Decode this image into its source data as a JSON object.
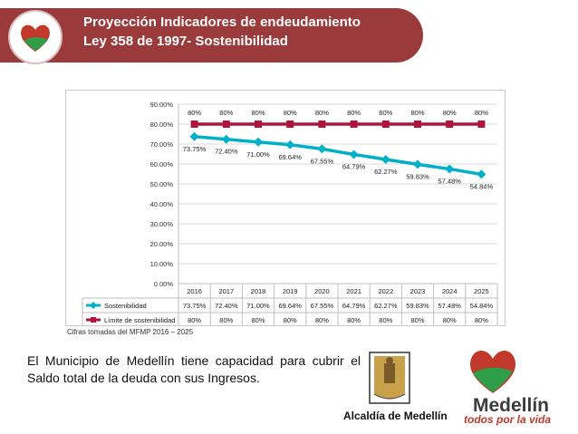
{
  "header": {
    "line1": "Proyección Indicadores de endeudamiento",
    "line2": "Ley 358 de 1997- Sostenibilidad"
  },
  "chart_data": {
    "type": "line",
    "categories": [
      "2016",
      "2017",
      "2018",
      "2019",
      "2020",
      "2021",
      "2022",
      "2023",
      "2024",
      "2025"
    ],
    "series": [
      {
        "name": "Sostenibilidad",
        "values": [
          73.75,
          72.4,
          71.0,
          69.64,
          67.55,
          64.79,
          62.27,
          59.83,
          57.48,
          54.84
        ],
        "labels": [
          "73.75%",
          "72.40%",
          "71.00%",
          "69.64%",
          "67.55%",
          "64.79%",
          "62.27%",
          "59.83%",
          "57.48%",
          "54.84%"
        ],
        "color": "#00b0c8",
        "marker": "diamond"
      },
      {
        "name": "Límite de sostenibilidad",
        "values": [
          80,
          80,
          80,
          80,
          80,
          80,
          80,
          80,
          80,
          80
        ],
        "labels": [
          "80%",
          "80%",
          "80%",
          "80%",
          "80%",
          "80%",
          "80%",
          "80%",
          "80%",
          "80%"
        ],
        "color": "#b0143c",
        "marker": "square"
      }
    ],
    "y_ticks": [
      "0.00%",
      "10.00%",
      "20.00%",
      "30.00%",
      "40.00%",
      "50.00%",
      "60.00%",
      "70.00%",
      "80.00%",
      "90.00%"
    ],
    "ylim": [
      0,
      90
    ],
    "table": true,
    "legend": "bottom (data table)"
  },
  "source_note": "Cifras tomadas del MFMP 2016 – 2025",
  "paragraph": "El Municipio de Medellín tiene capacidad para cubrir el Saldo total de la deuda con sus Ingresos.",
  "alcaldia_label": "Alcaldía de Medellín",
  "brand": {
    "name": "Medellín",
    "slogan": "todos por la vida"
  },
  "colors": {
    "banner": "#9b3a3a",
    "series1": "#00b0c8",
    "series2": "#b0143c"
  }
}
